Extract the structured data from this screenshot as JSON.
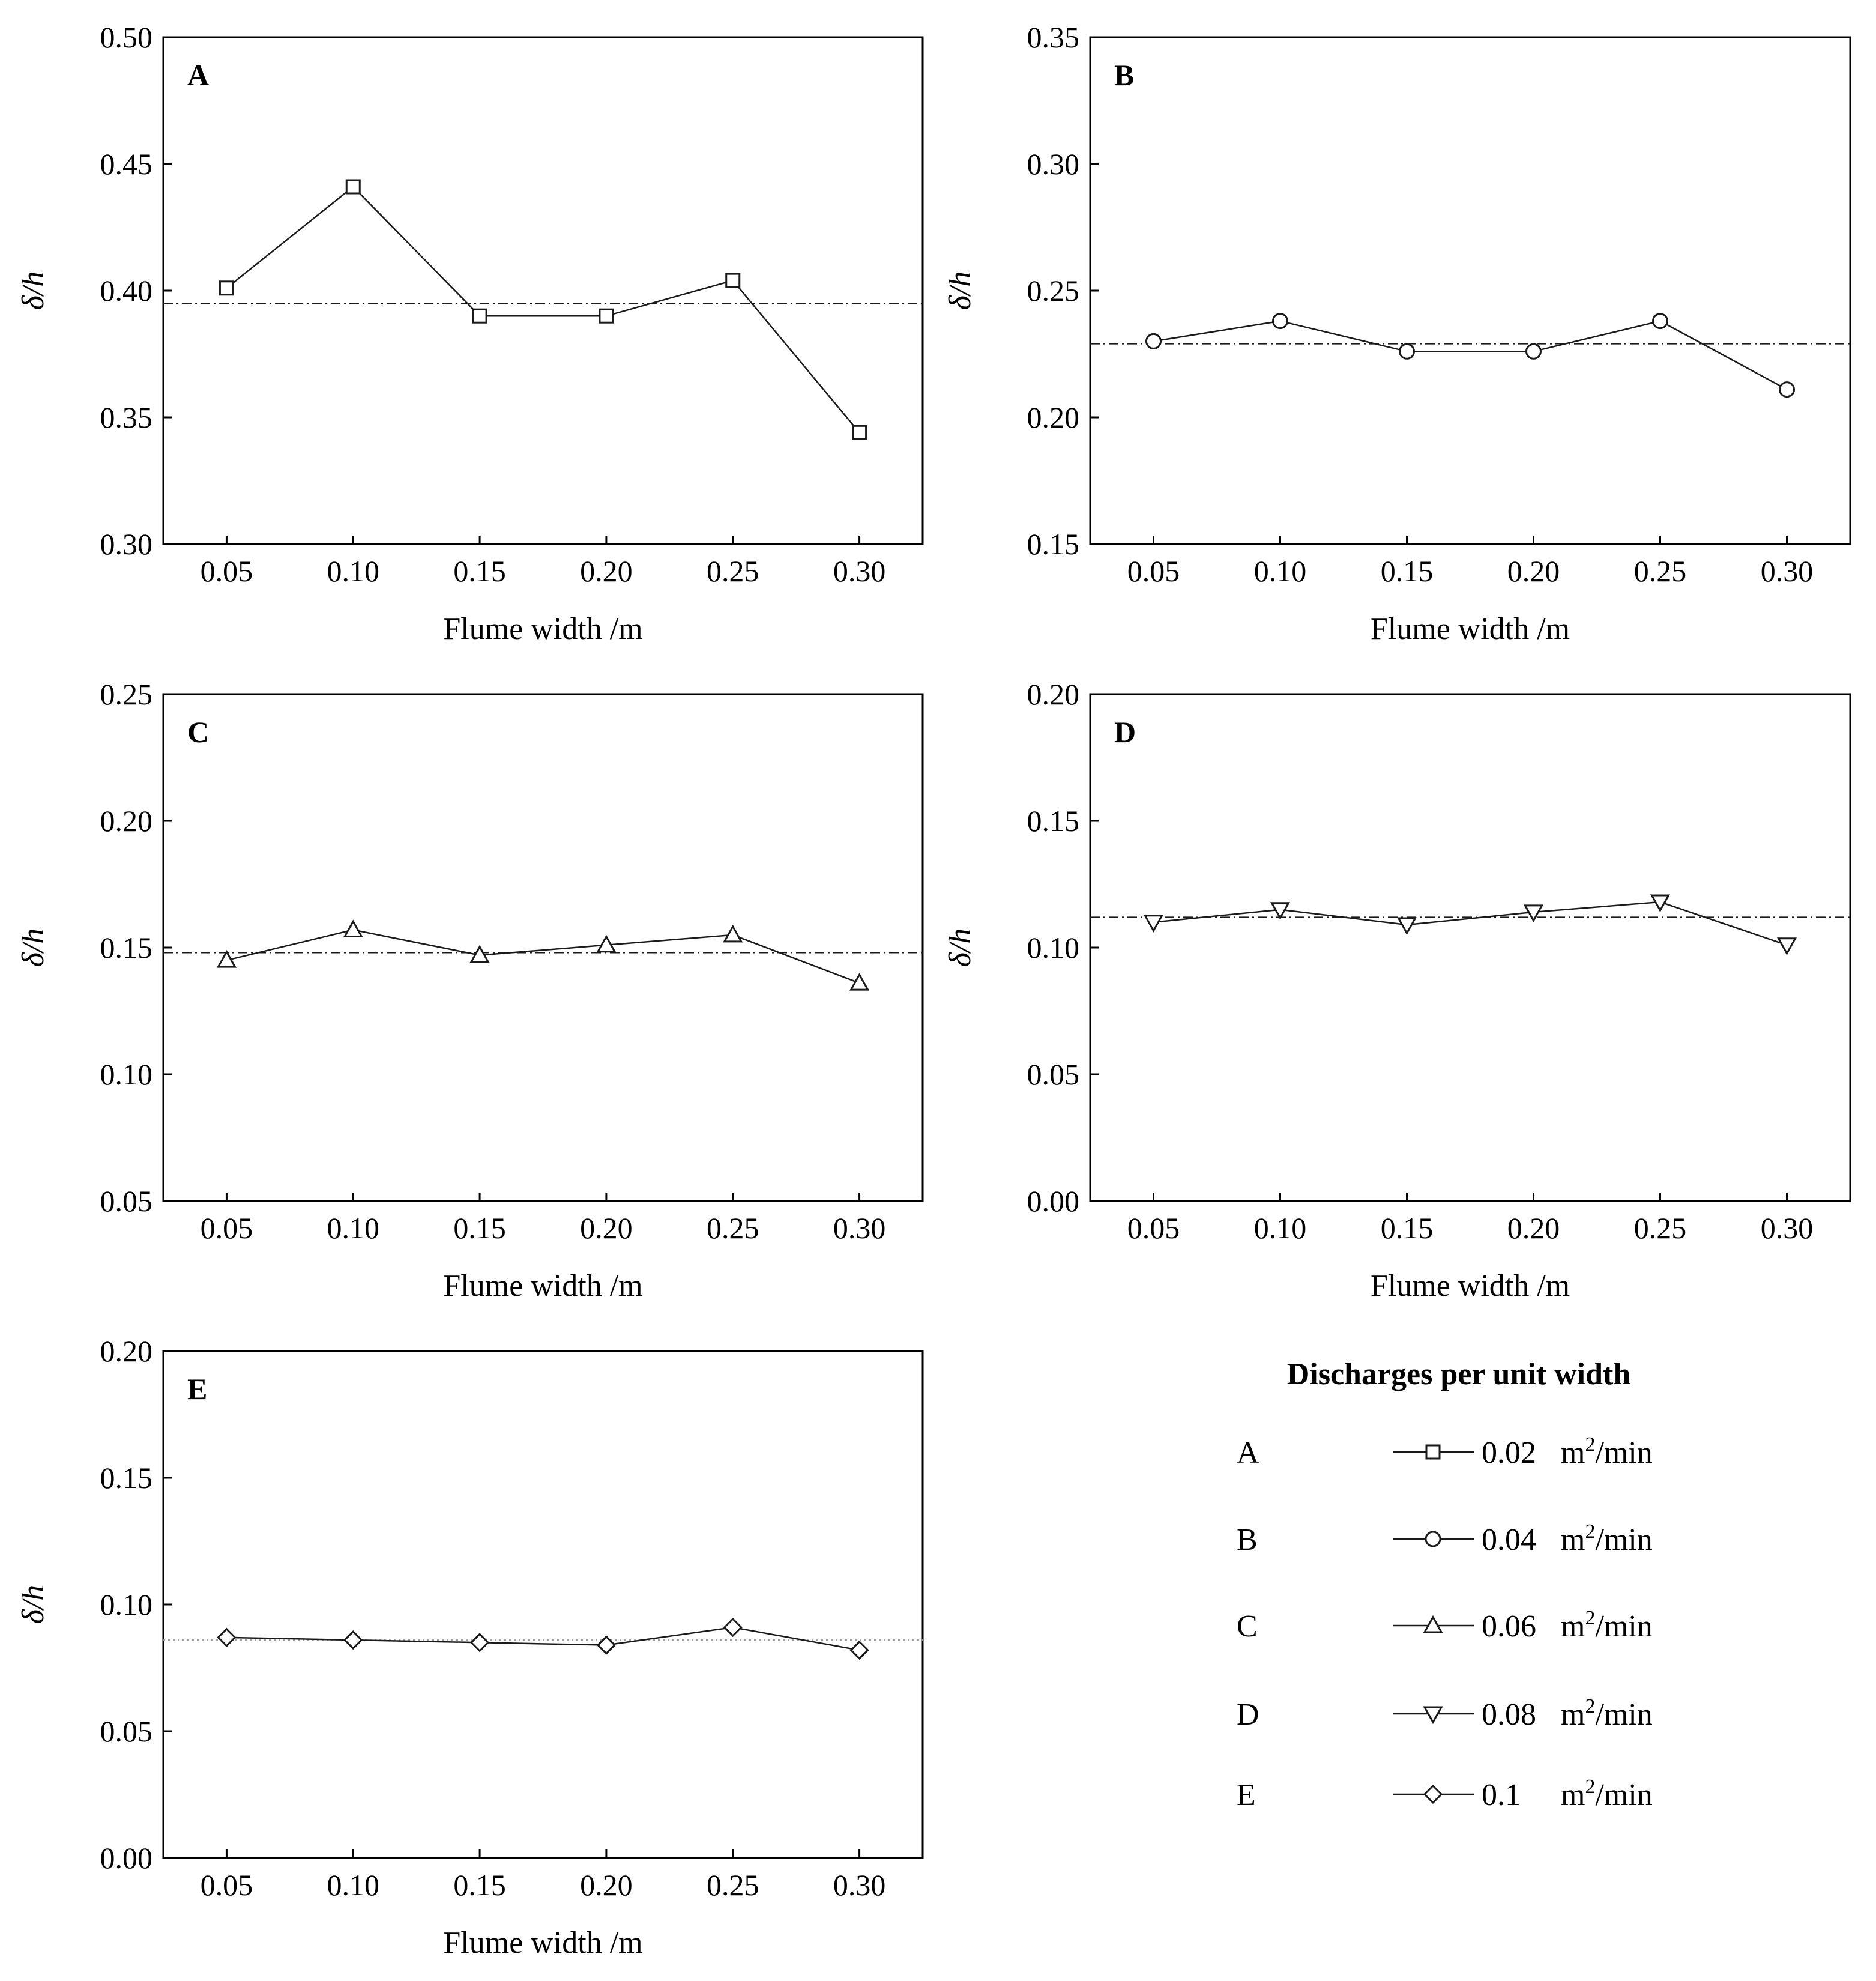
{
  "chart_data": [
    {
      "type": "line",
      "panel": "A",
      "xlabel": "Flume width /m",
      "ylabel_main": "δ",
      "ylabel_tail": "/h",
      "x": [
        0.05,
        0.1,
        0.15,
        0.2,
        0.25,
        0.3
      ],
      "x_tick_labels": [
        "0.05",
        "0.10",
        "0.15",
        "0.20",
        "0.25",
        "0.30"
      ],
      "ylim": [
        0.3,
        0.5
      ],
      "y_ticks": [
        0.3,
        0.35,
        0.4,
        0.45,
        0.5
      ],
      "y_tick_labels": [
        "0.30",
        "0.35",
        "0.40",
        "0.45",
        "0.50"
      ],
      "series": [
        {
          "name": "0.02 m²/min",
          "marker": "square",
          "values": [
            0.401,
            0.441,
            0.39,
            0.39,
            0.404,
            0.344
          ]
        }
      ],
      "reference_line": 0.395,
      "reference_style": "dash-dot"
    },
    {
      "type": "line",
      "panel": "B",
      "xlabel": "Flume width /m",
      "ylabel_main": "δ",
      "ylabel_tail": "/h",
      "x": [
        0.05,
        0.1,
        0.15,
        0.2,
        0.25,
        0.3
      ],
      "x_tick_labels": [
        "0.05",
        "0.10",
        "0.15",
        "0.20",
        "0.25",
        "0.30"
      ],
      "ylim": [
        0.15,
        0.35
      ],
      "y_ticks": [
        0.15,
        0.2,
        0.25,
        0.3,
        0.35
      ],
      "y_tick_labels": [
        "0.15",
        "0.20",
        "0.25",
        "0.30",
        "0.35"
      ],
      "series": [
        {
          "name": "0.04 m²/min",
          "marker": "circle",
          "values": [
            0.23,
            0.238,
            0.226,
            0.226,
            0.238,
            0.211
          ]
        }
      ],
      "reference_line": 0.229,
      "reference_style": "dash-dot"
    },
    {
      "type": "line",
      "panel": "C",
      "xlabel": "Flume width /m",
      "ylabel_main": "δ",
      "ylabel_tail": "/h",
      "x": [
        0.05,
        0.1,
        0.15,
        0.2,
        0.25,
        0.3
      ],
      "x_tick_labels": [
        "0.05",
        "0.10",
        "0.15",
        "0.20",
        "0.25",
        "0.30"
      ],
      "ylim": [
        0.05,
        0.25
      ],
      "y_ticks": [
        0.05,
        0.1,
        0.15,
        0.2,
        0.25
      ],
      "y_tick_labels": [
        "0.05",
        "0.10",
        "0.15",
        "0.20",
        "0.25"
      ],
      "series": [
        {
          "name": "0.06 m²/min",
          "marker": "triangle-up",
          "values": [
            0.145,
            0.157,
            0.147,
            0.151,
            0.155,
            0.136
          ]
        }
      ],
      "reference_line": 0.148,
      "reference_style": "dash-dot"
    },
    {
      "type": "line",
      "panel": "D",
      "xlabel": "Flume width /m",
      "ylabel_main": "δ",
      "ylabel_tail": "/h",
      "x": [
        0.05,
        0.1,
        0.15,
        0.2,
        0.25,
        0.3
      ],
      "x_tick_labels": [
        "0.05",
        "0.10",
        "0.15",
        "0.20",
        "0.25",
        "0.30"
      ],
      "ylim": [
        0.0,
        0.2
      ],
      "y_ticks": [
        0.0,
        0.05,
        0.1,
        0.15,
        0.2
      ],
      "y_tick_labels": [
        "0.00",
        "0.05",
        "0.10",
        "0.15",
        "0.20"
      ],
      "series": [
        {
          "name": "0.08 m²/min",
          "marker": "triangle-down",
          "values": [
            0.11,
            0.115,
            0.109,
            0.114,
            0.118,
            0.101
          ]
        }
      ],
      "reference_line": 0.112,
      "reference_style": "dash-dot"
    },
    {
      "type": "line",
      "panel": "E",
      "xlabel": "Flume width /m",
      "ylabel_main": "δ",
      "ylabel_tail": "/h",
      "x": [
        0.05,
        0.1,
        0.15,
        0.2,
        0.25,
        0.3
      ],
      "x_tick_labels": [
        "0.05",
        "0.10",
        "0.15",
        "0.20",
        "0.25",
        "0.30"
      ],
      "ylim": [
        0.0,
        0.2
      ],
      "y_ticks": [
        0.0,
        0.05,
        0.1,
        0.15,
        0.2
      ],
      "y_tick_labels": [
        "0.00",
        "0.05",
        "0.10",
        "0.15",
        "0.20"
      ],
      "series": [
        {
          "name": "0.1 m²/min",
          "marker": "diamond",
          "values": [
            0.087,
            0.086,
            0.085,
            0.084,
            0.091,
            0.082
          ]
        }
      ],
      "reference_line": 0.086,
      "reference_style": "dotted"
    }
  ],
  "legend": {
    "title": "Discharges per unit width",
    "entries": [
      {
        "label": "A",
        "value": "0.02",
        "unit_base": "m",
        "unit_exp": "2",
        "unit_tail": "/min",
        "marker": "square"
      },
      {
        "label": "B",
        "value": "0.04",
        "unit_base": "m",
        "unit_exp": "2",
        "unit_tail": "/min",
        "marker": "circle"
      },
      {
        "label": "C",
        "value": "0.06",
        "unit_base": "m",
        "unit_exp": "2",
        "unit_tail": "/min",
        "marker": "triangle-up"
      },
      {
        "label": "D",
        "value": "0.08",
        "unit_base": "m",
        "unit_exp": "2",
        "unit_tail": "/min",
        "marker": "triangle-down"
      },
      {
        "label": "E",
        "value": "0.1",
        "unit_base": "m",
        "unit_exp": "2",
        "unit_tail": "/min",
        "marker": "diamond"
      }
    ]
  },
  "colors": {
    "line": "#1a1a1a",
    "marker_stroke": "#1a1a1a",
    "marker_fill": "#ffffff",
    "reference": "#1a1a1a",
    "reference_light": "#999999",
    "axis": "#000000"
  }
}
